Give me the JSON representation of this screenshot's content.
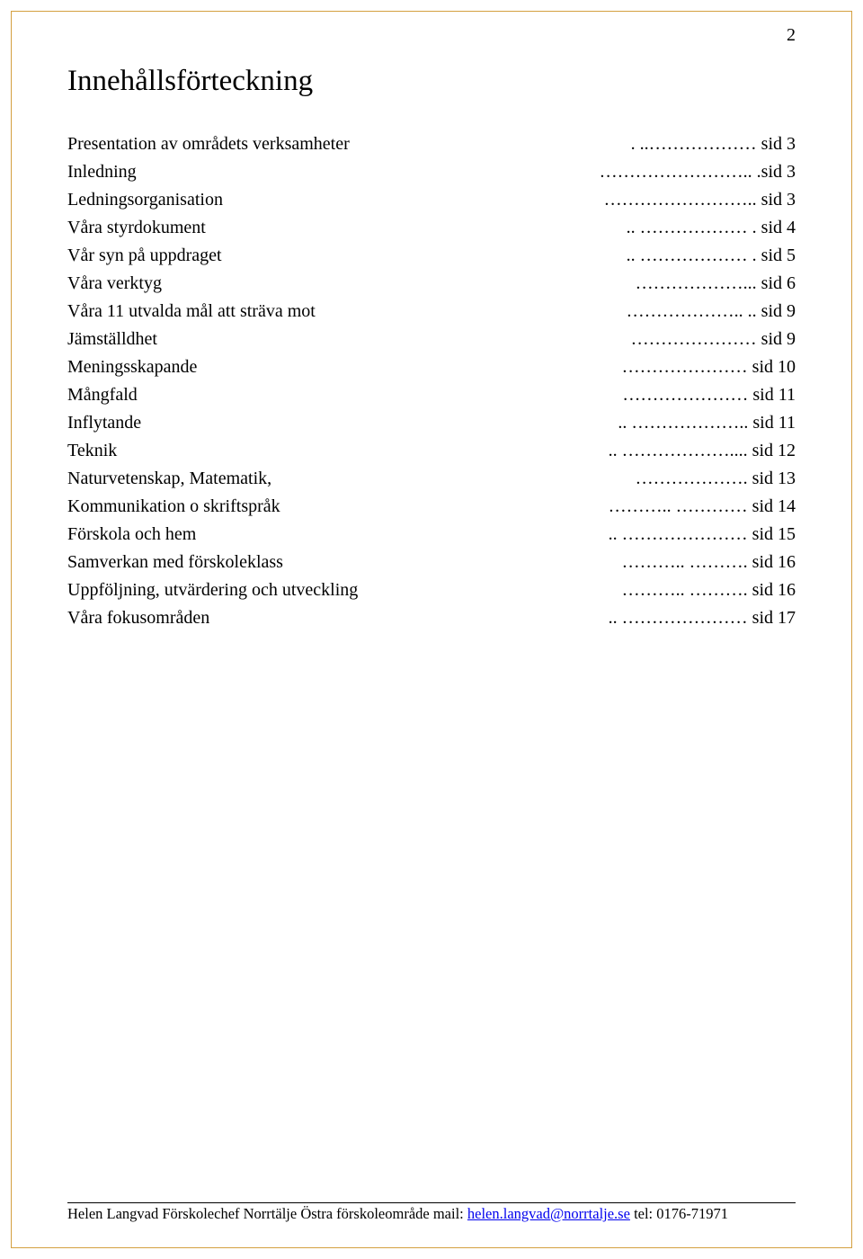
{
  "page_number": "2",
  "title": "Innehållsförteckning",
  "toc": [
    {
      "label": "Presentation av områdets verksamheter",
      "leader": ". ..………………",
      "page": "sid 3"
    },
    {
      "label": "Inledning",
      "leader": "……………………..",
      "page": ".sid 3"
    },
    {
      "label": "Ledningsorganisation",
      "leader": "……………………..",
      "page": "sid 3"
    },
    {
      "label": "Våra styrdokument",
      "leader": ".. ……………… .",
      "page": "sid 4"
    },
    {
      "label": "Vår syn på uppdraget",
      "leader": ".. ……………… .",
      "page": "sid 5"
    },
    {
      "label": "Våra verktyg",
      "leader": "………………...",
      "page": "sid 6"
    },
    {
      "label": "Våra 11 utvalda mål att sträva mot",
      "leader": "……………….. ..",
      "page": "sid 9"
    },
    {
      "label": "Jämställdhet",
      "leader": "…………………",
      "page": "sid 9"
    },
    {
      "label": "Meningsskapande",
      "leader": "…………………",
      "page": "sid 10"
    },
    {
      "label": "Mångfald",
      "leader": "…………………",
      "page": "sid 11"
    },
    {
      "label": "Inflytande",
      "leader": ".. ………………..",
      "page": "sid 11"
    },
    {
      "label": "Teknik",
      "leader": ".. ………………....",
      "page": "sid 12"
    },
    {
      "label": "Naturvetenskap, Matematik,",
      "leader": "……………….",
      "page": "sid 13"
    },
    {
      "label": "Kommunikation o skriftspråk",
      "leader": "……….. …………",
      "page": "sid 14"
    },
    {
      "label": "Förskola och hem",
      "leader": ".. …………………",
      "page": "sid 15"
    },
    {
      "label": "Samverkan med förskoleklass",
      "leader": "……….. ……….",
      "page": "sid 16"
    },
    {
      "label": "Uppföljning, utvärdering och utveckling",
      "leader": "……….. ……….",
      "page": "sid 16"
    },
    {
      "label": "Våra fokusområden",
      "leader": ".. …………………",
      "page": "sid 17"
    }
  ],
  "footer": {
    "prefix": "Helen Langvad Förskolechef  Norrtälje Östra förskoleområde mail: ",
    "email": "helen.langvad@norrtalje.se",
    "suffix": "  tel: 0176-71971"
  },
  "colors": {
    "border": "#d4a040",
    "text": "#000000",
    "link": "#0000ee",
    "background": "#ffffff"
  }
}
